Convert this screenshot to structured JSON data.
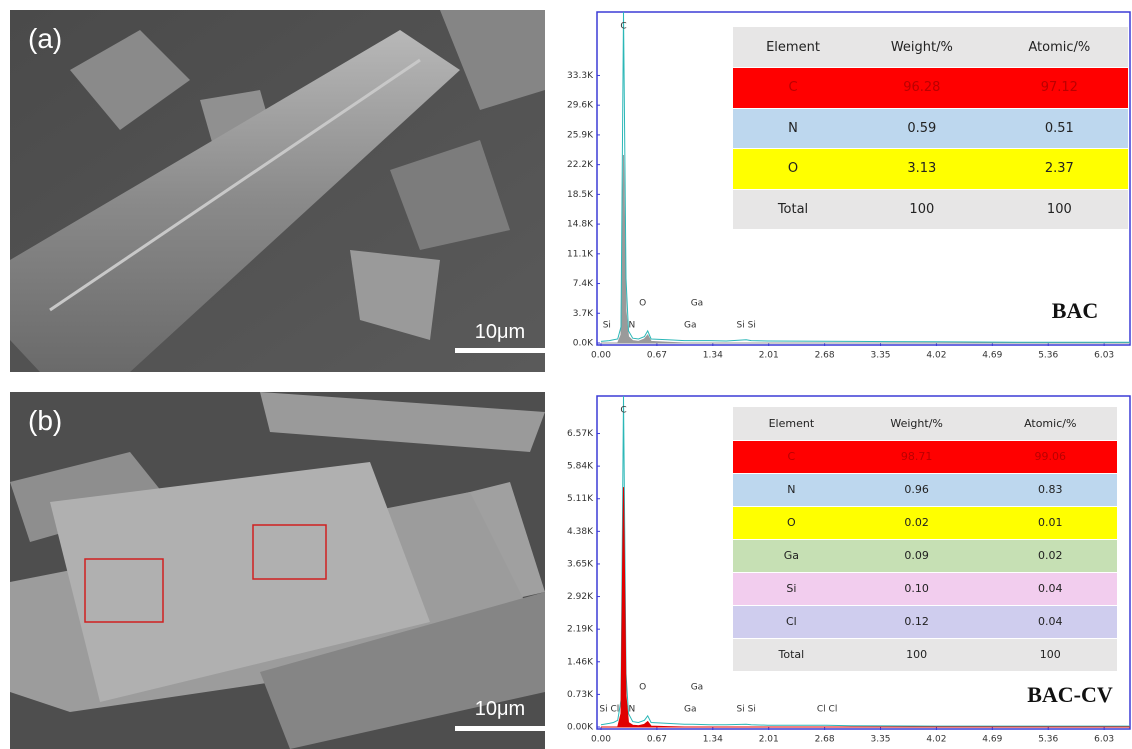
{
  "panels": [
    {
      "label": "(a)",
      "scale_bar": "10μm"
    },
    {
      "label": "(b)",
      "scale_bar": "10μm"
    }
  ],
  "chart_data": [
    {
      "type": "line",
      "title": "BAC",
      "x": [
        0,
        0.1,
        0.15,
        0.2,
        0.24,
        0.27,
        0.3,
        0.33,
        0.38,
        0.45,
        0.52,
        0.56,
        0.6,
        0.8,
        1.0,
        1.1,
        1.3,
        1.5,
        1.74,
        1.8,
        2.0,
        3.0,
        4.0,
        5.0,
        6.34
      ],
      "series": [
        {
          "color": "#9a9a9a",
          "fill": true,
          "values": [
            0,
            0,
            0,
            0,
            1000,
            23400,
            4000,
            800,
            300,
            200,
            500,
            1000,
            200,
            100,
            0,
            0,
            0,
            0,
            0,
            0,
            0,
            0,
            0,
            0,
            0
          ]
        },
        {
          "color": "#2bb7b7",
          "fill": false,
          "values": [
            200,
            300,
            400,
            500,
            2000,
            41200,
            8000,
            1500,
            600,
            500,
            800,
            1500,
            500,
            400,
            300,
            300,
            300,
            250,
            400,
            300,
            250,
            200,
            150,
            100,
            100
          ]
        }
      ],
      "xlim": [
        0,
        6.34
      ],
      "ylim": [
        0,
        41200
      ],
      "xticks": [
        {
          "value": 0,
          "label": "0.00"
        },
        0.67,
        1.34,
        2.01,
        2.68,
        3.35,
        4.02,
        4.69,
        5.36,
        6.03
      ],
      "yticks": [
        {
          "value": 0,
          "label": "0.0K"
        },
        {
          "value": 3700,
          "label": "3.7K"
        },
        {
          "value": 7400,
          "label": "7.4K"
        },
        {
          "value": 11100,
          "label": "11.1K"
        },
        {
          "value": 14800,
          "label": "14.8K"
        },
        {
          "value": 18500,
          "label": "18.5K"
        },
        {
          "value": 22200,
          "label": "22.2K"
        },
        {
          "value": 25900,
          "label": "25.9K"
        },
        {
          "value": 29600,
          "label": "29.6K"
        },
        {
          "value": 33300,
          "label": "33.3K"
        }
      ],
      "peaks": [
        {
          "label": "C",
          "energy": 0.27
        },
        {
          "label": "Si",
          "energy": 0.07
        },
        {
          "label": "N",
          "energy": 0.37
        },
        {
          "label": "O",
          "energy": 0.5
        },
        {
          "label": "Ga",
          "energy": 1.07
        },
        {
          "label": "Ga",
          "energy": 1.15
        },
        {
          "label": "Si Si",
          "energy": 1.74
        }
      ]
    },
    {
      "type": "line",
      "title": "BAC-CV",
      "x": [
        0,
        0.1,
        0.15,
        0.2,
        0.24,
        0.27,
        0.3,
        0.33,
        0.38,
        0.45,
        0.52,
        0.56,
        0.6,
        0.8,
        1.0,
        1.1,
        1.3,
        1.5,
        1.74,
        1.8,
        2.0,
        2.7,
        3.0,
        4.0,
        5.0,
        6.34
      ],
      "series": [
        {
          "color": "#2bb7b7",
          "fill": false,
          "values": [
            50,
            80,
            100,
            150,
            600,
            7410,
            1200,
            300,
            120,
            100,
            150,
            250,
            100,
            80,
            60,
            60,
            50,
            50,
            60,
            50,
            40,
            40,
            30,
            20,
            20,
            20
          ]
        },
        {
          "color": "#e00000",
          "fill": true,
          "values": [
            0,
            0,
            0,
            0,
            300,
            5370,
            700,
            100,
            40,
            30,
            60,
            120,
            20,
            10,
            0,
            0,
            0,
            0,
            0,
            0,
            0,
            0,
            0,
            0,
            0,
            0
          ]
        }
      ],
      "xlim": [
        0,
        6.34
      ],
      "ylim": [
        0,
        7410
      ],
      "xticks": [
        {
          "value": 0,
          "label": "0.00"
        },
        0.67,
        1.34,
        2.01,
        2.68,
        3.35,
        4.02,
        4.69,
        5.36,
        6.03
      ],
      "yticks": [
        {
          "value": 0,
          "label": "0.00K"
        },
        {
          "value": 730,
          "label": "0.73K"
        },
        {
          "value": 1460,
          "label": "1.46K"
        },
        {
          "value": 2190,
          "label": "2.19K"
        },
        {
          "value": 2920,
          "label": "2.92K"
        },
        {
          "value": 3650,
          "label": "3.65K"
        },
        {
          "value": 4380,
          "label": "4.38K"
        },
        {
          "value": 5110,
          "label": "5.11K"
        },
        {
          "value": 5840,
          "label": "5.84K"
        },
        {
          "value": 6570,
          "label": "6.57K"
        }
      ],
      "peaks": [
        {
          "label": "C",
          "energy": 0.27
        },
        {
          "label": "Si Cl",
          "energy": 0.1
        },
        {
          "label": "N",
          "energy": 0.37
        },
        {
          "label": "O",
          "energy": 0.5
        },
        {
          "label": "Ga",
          "energy": 1.07
        },
        {
          "label": "Ga",
          "energy": 1.15
        },
        {
          "label": "Si Si",
          "energy": 1.74
        },
        {
          "label": "Cl Cl",
          "energy": 2.71
        }
      ]
    }
  ],
  "tables": [
    {
      "columns": [
        "Element",
        "Weight/%",
        "Atomic/%"
      ],
      "rows": [
        [
          "C",
          "96.28",
          "97.12"
        ],
        [
          "N",
          "0.59",
          "0.51"
        ],
        [
          "O",
          "3.13",
          "2.37"
        ],
        [
          "Total",
          "100",
          "100"
        ]
      ],
      "row_colors": [
        "#ff0000",
        "#bdd7ee",
        "#ffff00",
        "#e7e6e6"
      ]
    },
    {
      "columns": [
        "Element",
        "Weight/%",
        "Atomic/%"
      ],
      "rows": [
        [
          "C",
          "98.71",
          "99.06"
        ],
        [
          "N",
          "0.96",
          "0.83"
        ],
        [
          "O",
          "0.02",
          "0.01"
        ],
        [
          "Ga",
          "0.09",
          "0.02"
        ],
        [
          "Si",
          "0.10",
          "0.04"
        ],
        [
          "Cl",
          "0.12",
          "0.04"
        ],
        [
          "Total",
          "100",
          "100"
        ]
      ],
      "row_colors": [
        "#ff0000",
        "#bdd7ee",
        "#ffff00",
        "#c6e0b4",
        "#f2cdee",
        "#cfcdee",
        "#e7e6e6"
      ]
    }
  ]
}
